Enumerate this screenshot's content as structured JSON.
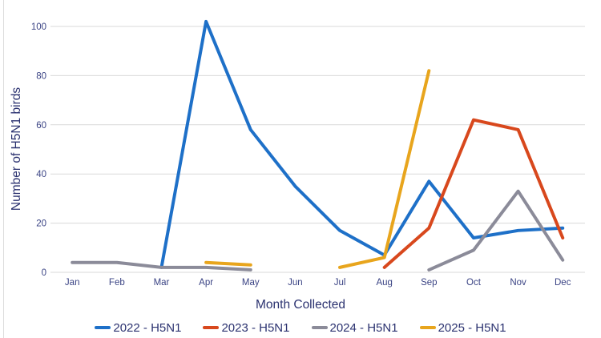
{
  "chart_data": {
    "type": "line",
    "categories": [
      "Jan",
      "Feb",
      "Mar",
      "Apr",
      "May",
      "Jun",
      "Jul",
      "Aug",
      "Sep",
      "Oct",
      "Nov",
      "Dec"
    ],
    "series": [
      {
        "name": "2022 - H5N1",
        "color": "#1e70c8",
        "values": [
          null,
          null,
          2,
          102,
          58,
          35,
          17,
          7,
          37,
          14,
          17,
          18
        ]
      },
      {
        "name": "2023 - H5N1",
        "color": "#d8481d",
        "values": [
          null,
          null,
          null,
          null,
          null,
          null,
          null,
          2,
          18,
          62,
          58,
          14
        ]
      },
      {
        "name": "2024 - H5N1",
        "color": "#8b8b99",
        "values": [
          4,
          4,
          2,
          2,
          1,
          null,
          null,
          null,
          1,
          9,
          33,
          5
        ]
      },
      {
        "name": "2025 - H5N1",
        "color": "#e8a51d",
        "values": [
          null,
          null,
          null,
          4,
          3,
          null,
          2,
          6,
          82,
          null,
          null,
          null
        ]
      }
    ],
    "title": "",
    "xlabel": "Month Collected",
    "ylabel": "Number of H5N1 birds",
    "yticks": [
      0,
      20,
      40,
      60,
      80,
      100
    ],
    "ylim": [
      0,
      105
    ],
    "grid": true,
    "gridline_color": "#d9d9d9",
    "legend_position": "bottom",
    "text_color": "#2b3270",
    "tick_text_color": "#3a4384"
  }
}
